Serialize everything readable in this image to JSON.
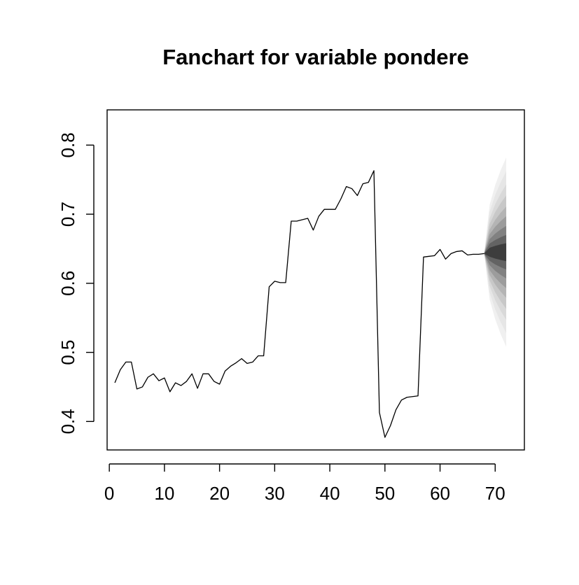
{
  "chart_data": {
    "type": "line",
    "title": "Fanchart for variable pondere",
    "xlabel": "",
    "ylabel": "",
    "xlim": [
      -0.4,
      75.3
    ],
    "ylim": [
      0.3588,
      0.851
    ],
    "x_ticks": [
      0,
      10,
      20,
      30,
      40,
      50,
      60,
      70
    ],
    "y_ticks": [
      0.4,
      0.5,
      0.6,
      0.7,
      0.8
    ],
    "x_tick_labels": [
      "0",
      "10",
      "20",
      "30",
      "40",
      "50",
      "60",
      "70"
    ],
    "y_tick_labels": [
      "0.4",
      "0.5",
      "0.6",
      "0.7",
      "0.8"
    ],
    "grid": false,
    "series": [
      {
        "color": "#000000",
        "x": [
          1,
          2,
          3,
          4,
          5,
          6,
          7,
          8,
          9,
          10,
          11,
          12,
          13,
          14,
          15,
          16,
          17,
          18,
          19,
          20,
          21,
          22,
          23,
          24,
          25,
          26,
          27,
          28,
          29,
          30,
          31,
          32,
          33,
          34,
          35,
          36,
          37,
          38,
          39,
          40,
          41,
          42,
          43,
          44,
          45,
          46,
          47,
          48,
          49,
          50,
          51,
          52,
          53,
          54,
          55,
          56,
          57,
          58,
          59,
          60,
          61,
          62,
          63,
          64,
          65,
          66,
          67,
          68
        ],
        "values": [
          0.456,
          0.475,
          0.486,
          0.486,
          0.447,
          0.45,
          0.464,
          0.469,
          0.459,
          0.463,
          0.443,
          0.456,
          0.452,
          0.458,
          0.469,
          0.448,
          0.469,
          0.469,
          0.458,
          0.454,
          0.473,
          0.48,
          0.485,
          0.491,
          0.484,
          0.486,
          0.495,
          0.495,
          0.595,
          0.603,
          0.601,
          0.601,
          0.69,
          0.69,
          0.692,
          0.694,
          0.677,
          0.697,
          0.707,
          0.707,
          0.707,
          0.722,
          0.74,
          0.737,
          0.727,
          0.744,
          0.746,
          0.763,
          0.413,
          0.377,
          0.394,
          0.417,
          0.431,
          0.435,
          0.436,
          0.437,
          0.638,
          0.639,
          0.64,
          0.649,
          0.635,
          0.643,
          0.646,
          0.647,
          0.641,
          0.642,
          0.642,
          0.643
        ]
      }
    ],
    "fan": {
      "x": [
        68,
        69,
        70,
        71,
        72
      ],
      "center": [
        0.643,
        0.645,
        0.645,
        0.645,
        0.645
      ],
      "band_colors": [
        "#f0f0f0",
        "#e6e6e6",
        "#d9d9d9",
        "#c8c8c8",
        "#b4b4b4",
        "#9c9c9c",
        "#818181",
        "#636363",
        "#3d3d3d"
      ],
      "band_half_widths_at_end": [
        0.137,
        0.117,
        0.098,
        0.082,
        0.066,
        0.052,
        0.038,
        0.025,
        0.013
      ]
    }
  }
}
